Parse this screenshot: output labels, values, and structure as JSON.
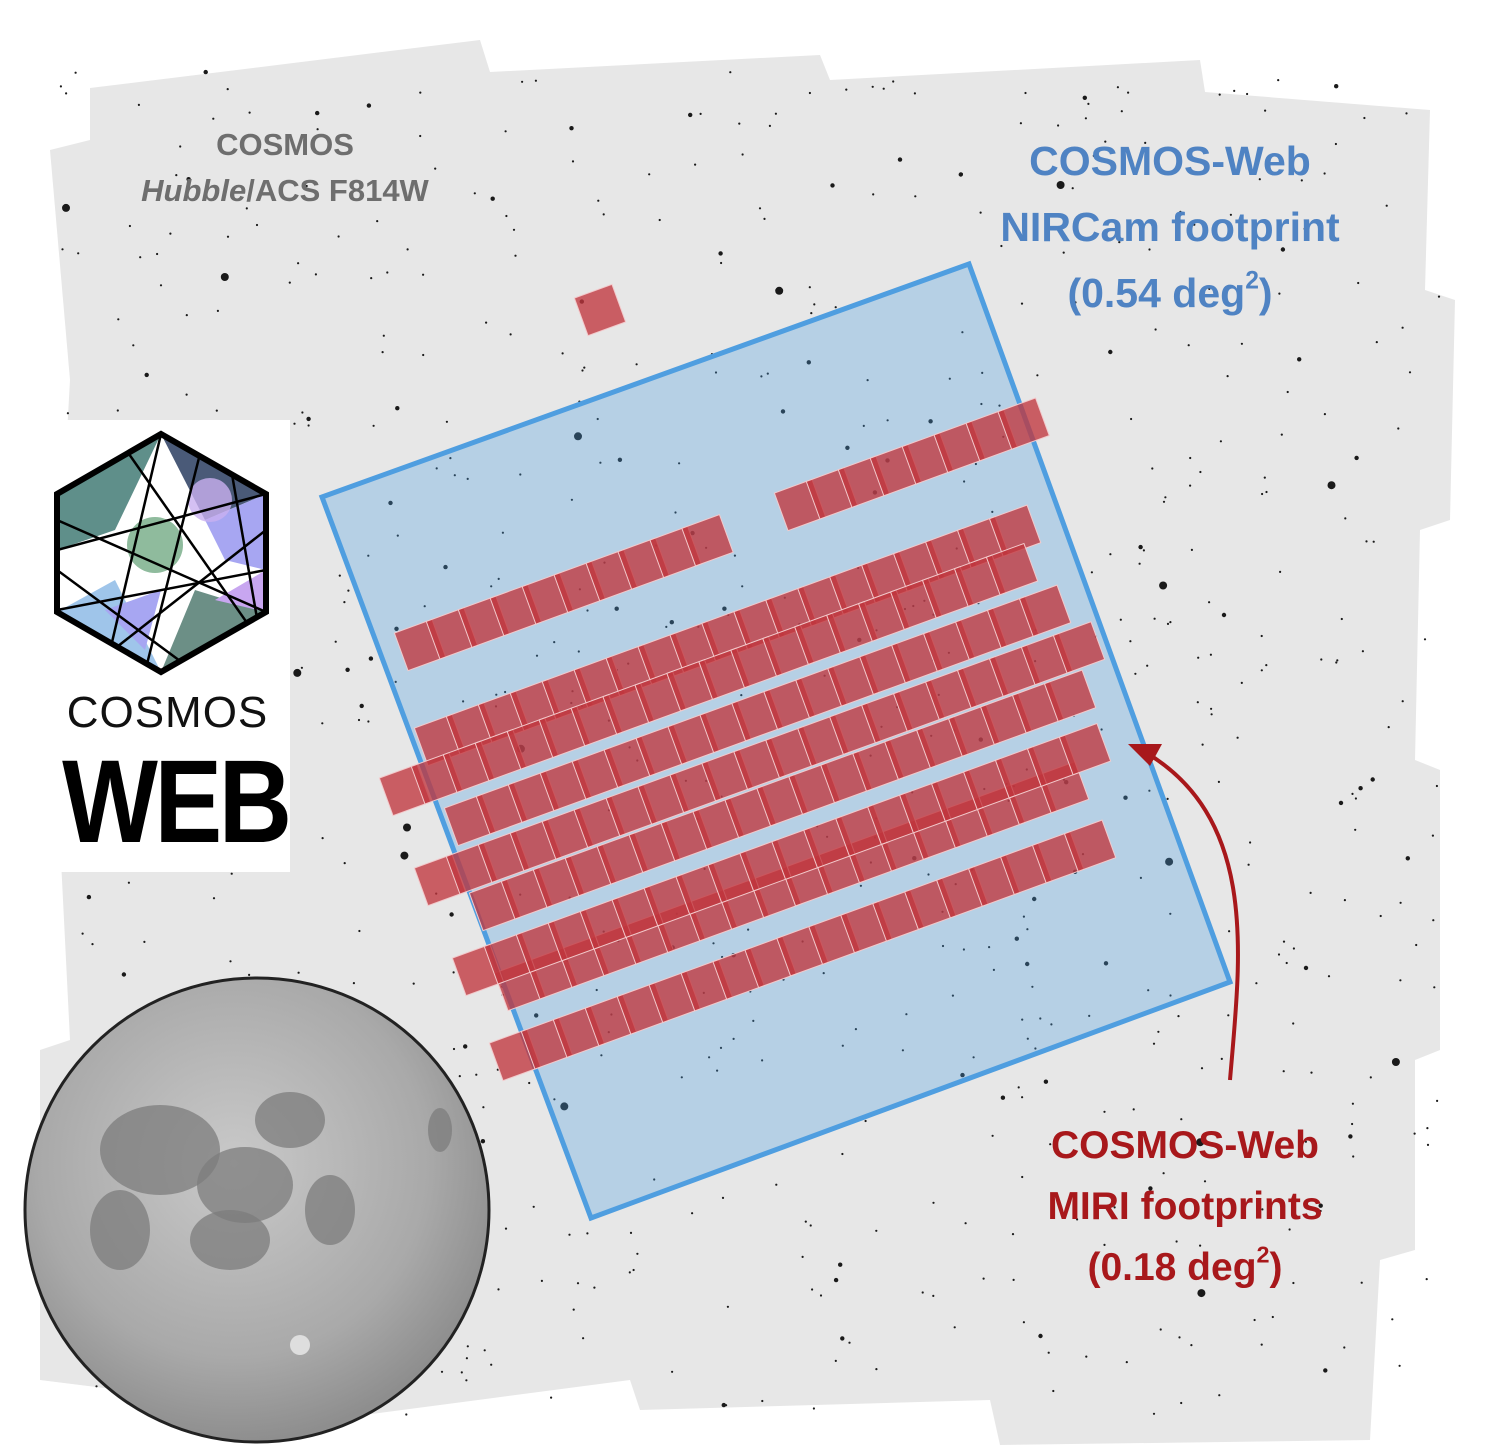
{
  "background_label": {
    "line1": "COSMOS",
    "line2_italic": "Hubble",
    "line2_rest": "/ACS F814W"
  },
  "nircam": {
    "line1": "COSMOS-Web",
    "line2": "NIRCam footprint",
    "line3_pre": "(0.54 deg",
    "line3_sup": "2",
    "line3_post": ")",
    "color": "#4f9ee0",
    "text_color": "#4f83c3"
  },
  "miri": {
    "line1": "COSMOS-Web",
    "line2": "MIRI footprints",
    "line3_pre": "(0.18 deg",
    "line3_sup": "2",
    "line3_post": ")",
    "color": "#c0363d",
    "text_color": "#a8181b"
  },
  "logo": {
    "word_top": "COSMOS",
    "word_bottom": "WEB"
  },
  "icons": [
    "cosmos-web-logo-icon",
    "moon-icon",
    "arrow-icon"
  ]
}
